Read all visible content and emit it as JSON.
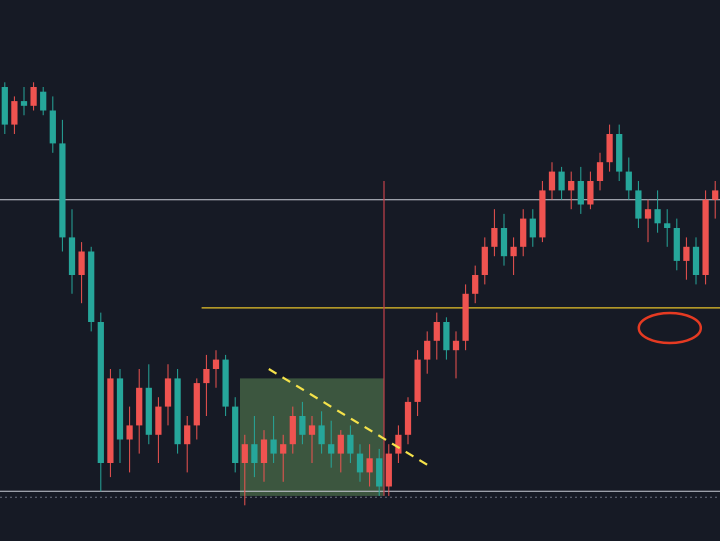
{
  "colors": {
    "background": "#161a25",
    "up_candle": "#ef5350",
    "down_candle": "#26a69a",
    "resistance_line": "#c9ccd6",
    "support_line": "#c9ccd6",
    "yellow_line": "#e6c229",
    "trend_line": "#f5e24a",
    "consolidation_box": "#4a6b48",
    "highlight_ellipse": "#e53a22",
    "spike_line": "#c2414a"
  },
  "chart_data": {
    "type": "candlestick",
    "title": "",
    "xlabel": "",
    "ylabel": "",
    "ylim": [
      0,
      100
    ],
    "xlim": [
      0,
      150
    ],
    "grid": false,
    "legend": "none",
    "candles": [
      [
        0,
        90,
        91,
        80,
        82
      ],
      [
        2,
        82,
        88,
        80,
        87
      ],
      [
        4,
        87,
        90,
        84,
        86
      ],
      [
        6,
        86,
        91,
        85,
        90
      ],
      [
        8,
        89,
        90,
        84,
        85
      ],
      [
        10,
        85,
        88,
        76,
        78
      ],
      [
        12,
        78,
        83,
        55,
        58
      ],
      [
        14,
        58,
        64,
        46,
        50
      ],
      [
        16,
        50,
        57,
        44,
        55
      ],
      [
        18,
        55,
        56,
        38,
        40
      ],
      [
        20,
        40,
        42,
        4,
        10
      ],
      [
        22,
        10,
        30,
        7,
        28
      ],
      [
        24,
        28,
        30,
        10,
        15
      ],
      [
        26,
        15,
        22,
        8,
        18
      ],
      [
        28,
        18,
        30,
        12,
        26
      ],
      [
        30,
        26,
        31,
        14,
        16
      ],
      [
        32,
        16,
        24,
        10,
        22
      ],
      [
        34,
        22,
        31,
        18,
        28
      ],
      [
        36,
        28,
        30,
        12,
        14
      ],
      [
        38,
        14,
        20,
        8,
        18
      ],
      [
        40,
        18,
        28,
        15,
        27
      ],
      [
        42,
        27,
        33,
        20,
        30
      ],
      [
        44,
        30,
        34,
        26,
        32
      ],
      [
        46,
        32,
        33,
        20,
        22
      ],
      [
        48,
        22,
        24,
        8,
        10
      ],
      [
        50,
        10,
        16,
        1,
        14
      ],
      [
        52,
        14,
        20,
        7,
        10
      ],
      [
        54,
        10,
        17,
        6,
        15
      ],
      [
        56,
        15,
        20,
        10,
        12
      ],
      [
        58,
        12,
        16,
        6,
        14
      ],
      [
        60,
        14,
        22,
        12,
        20
      ],
      [
        62,
        20,
        23,
        14,
        16
      ],
      [
        64,
        16,
        20,
        10,
        18
      ],
      [
        66,
        18,
        21,
        12,
        14
      ],
      [
        68,
        14,
        19,
        9,
        12
      ],
      [
        70,
        12,
        17,
        8,
        16
      ],
      [
        72,
        16,
        18,
        10,
        12
      ],
      [
        74,
        12,
        14,
        6,
        8
      ],
      [
        76,
        8,
        14,
        5,
        11
      ],
      [
        78,
        11,
        13,
        3,
        5
      ],
      [
        80,
        5,
        14,
        3,
        12
      ],
      [
        82,
        12,
        18,
        10,
        16
      ],
      [
        84,
        16,
        24,
        14,
        23
      ],
      [
        86,
        23,
        34,
        20,
        32
      ],
      [
        88,
        32,
        38,
        29,
        36
      ],
      [
        90,
        36,
        42,
        32,
        40
      ],
      [
        92,
        40,
        41,
        32,
        34
      ],
      [
        94,
        34,
        38,
        28,
        36
      ],
      [
        96,
        36,
        48,
        34,
        46
      ],
      [
        98,
        46,
        52,
        44,
        50
      ],
      [
        100,
        50,
        58,
        48,
        56
      ],
      [
        102,
        56,
        64,
        54,
        60
      ],
      [
        104,
        60,
        63,
        52,
        54
      ],
      [
        106,
        54,
        58,
        50,
        56
      ],
      [
        108,
        56,
        64,
        54,
        62
      ],
      [
        110,
        62,
        64,
        56,
        58
      ],
      [
        112,
        58,
        70,
        57,
        68
      ],
      [
        114,
        68,
        74,
        66,
        72
      ],
      [
        116,
        72,
        73,
        66,
        68
      ],
      [
        118,
        68,
        72,
        64,
        70
      ],
      [
        120,
        70,
        73,
        63,
        65
      ],
      [
        122,
        65,
        72,
        64,
        70
      ],
      [
        124,
        70,
        76,
        68,
        74
      ],
      [
        126,
        74,
        82,
        72,
        80
      ],
      [
        128,
        80,
        82,
        70,
        72
      ],
      [
        130,
        72,
        75,
        66,
        68
      ],
      [
        132,
        68,
        70,
        60,
        62
      ],
      [
        134,
        62,
        66,
        57,
        64
      ],
      [
        136,
        64,
        68,
        59,
        61
      ],
      [
        138,
        61,
        64,
        56,
        60
      ],
      [
        140,
        60,
        62,
        51,
        53
      ],
      [
        142,
        53,
        58,
        49,
        56
      ],
      [
        144,
        56,
        58,
        48,
        50
      ],
      [
        146,
        50,
        68,
        48,
        66
      ],
      [
        148,
        66,
        70,
        62,
        68
      ]
    ],
    "horizontal_levels": [
      {
        "y": 66,
        "role": "upper-level"
      },
      {
        "y": 4,
        "role": "lower-level"
      }
    ],
    "yellow_level": {
      "y": 43,
      "x_start": 42,
      "x_end": 150
    },
    "consolidation_zone": {
      "x_start": 50,
      "x_end": 80,
      "y_low": 3,
      "y_high": 28
    },
    "trend_line": {
      "x1": 56,
      "y1": 30,
      "x2": 90,
      "y2": 9
    },
    "spike_line": {
      "x": 80,
      "y_low": 3,
      "y_high": 70
    },
    "highlight_ellipse": {
      "cx": 136,
      "cy": 40
    }
  }
}
